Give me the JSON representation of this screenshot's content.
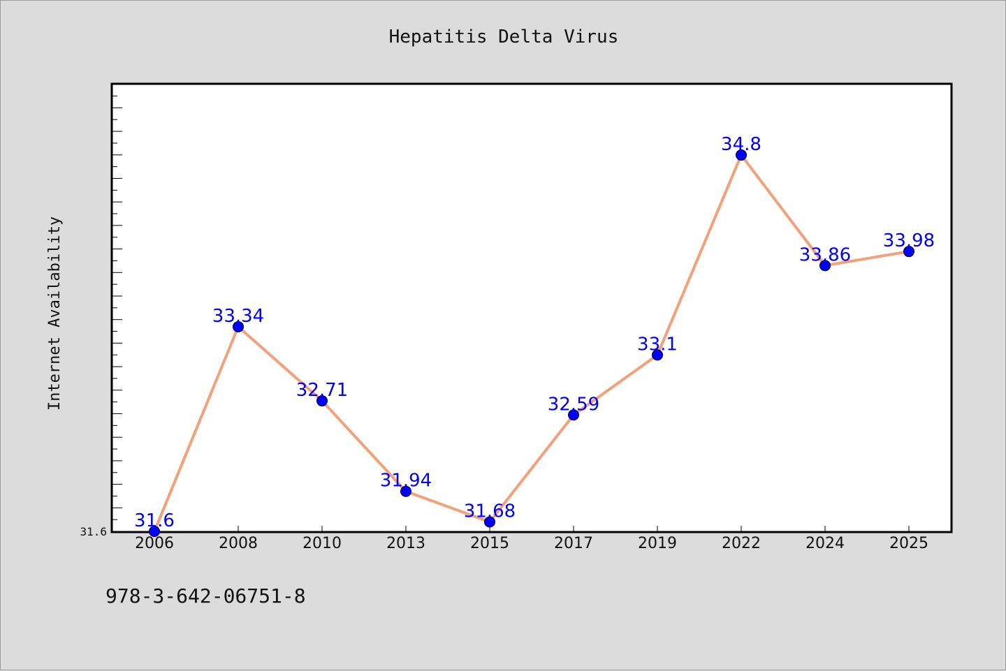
{
  "chart_data": {
    "type": "line",
    "title": "Hepatitis Delta Virus",
    "xlabel": "",
    "ylabel": "Internet Availability",
    "categories": [
      "2006",
      "2008",
      "2010",
      "2013",
      "2015",
      "2017",
      "2019",
      "2022",
      "2024",
      "2025"
    ],
    "series": [
      {
        "values": [
          31.6,
          33.34,
          32.71,
          31.94,
          31.68,
          32.59,
          33.1,
          34.8,
          33.86,
          33.98
        ],
        "labels": [
          "31.6",
          "33.34",
          "32.71",
          "31.94",
          "31.68",
          "32.59",
          "33.1",
          "34.8",
          "33.86",
          "33.98"
        ]
      }
    ],
    "ylim": [
      31.6,
      35.4
    ],
    "yticks": [
      "31.6"
    ],
    "grid": false,
    "line_color": "#f4a07a",
    "marker_color": "#0000ff",
    "label_color": "#0000ff"
  },
  "footnote": "978-3-642-06751-8"
}
